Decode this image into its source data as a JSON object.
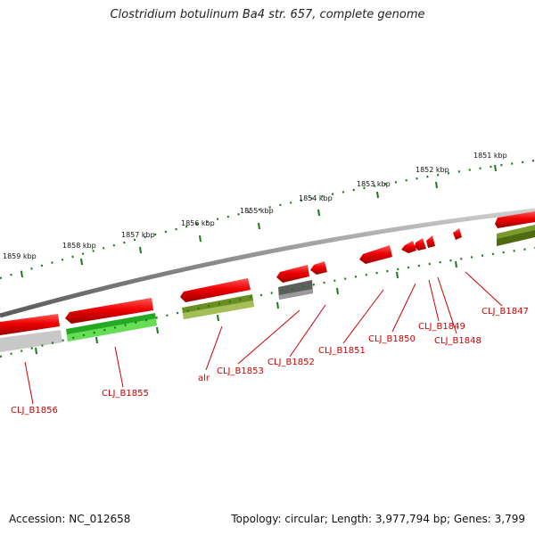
{
  "title": "Clostridium botulinum Ba4 str. 657, complete genome",
  "footer": {
    "accession": "Accession: NC_012658",
    "summary": "Topology: circular; Length: 3,977,794 bp; Genes: 3,799"
  },
  "ticks": [
    "1851 kbp",
    "1852 kbp",
    "1853 kbp",
    "1854 kbp",
    "1855 kbp",
    "1856 kbp",
    "1857 kbp",
    "1858 kbp",
    "1859 kbp"
  ],
  "genes": [
    "CLJ_B1847",
    "CLJ_B1848",
    "CLJ_B1849",
    "CLJ_B1850",
    "CLJ_B1851",
    "CLJ_B1852",
    "CLJ_B1853",
    "alr",
    "CLJ_B1855",
    "CLJ_B1856"
  ],
  "colors": {
    "backbone": "#8a8a8a",
    "cds_red": "#ee0000",
    "cds_green": "#22aa22",
    "cds_olive": "#6b8e23",
    "cds_grey": "#666666",
    "cds_light_grey": "#c0c0c0",
    "tick": "#1a7a1a",
    "label": "#cc0000"
  }
}
